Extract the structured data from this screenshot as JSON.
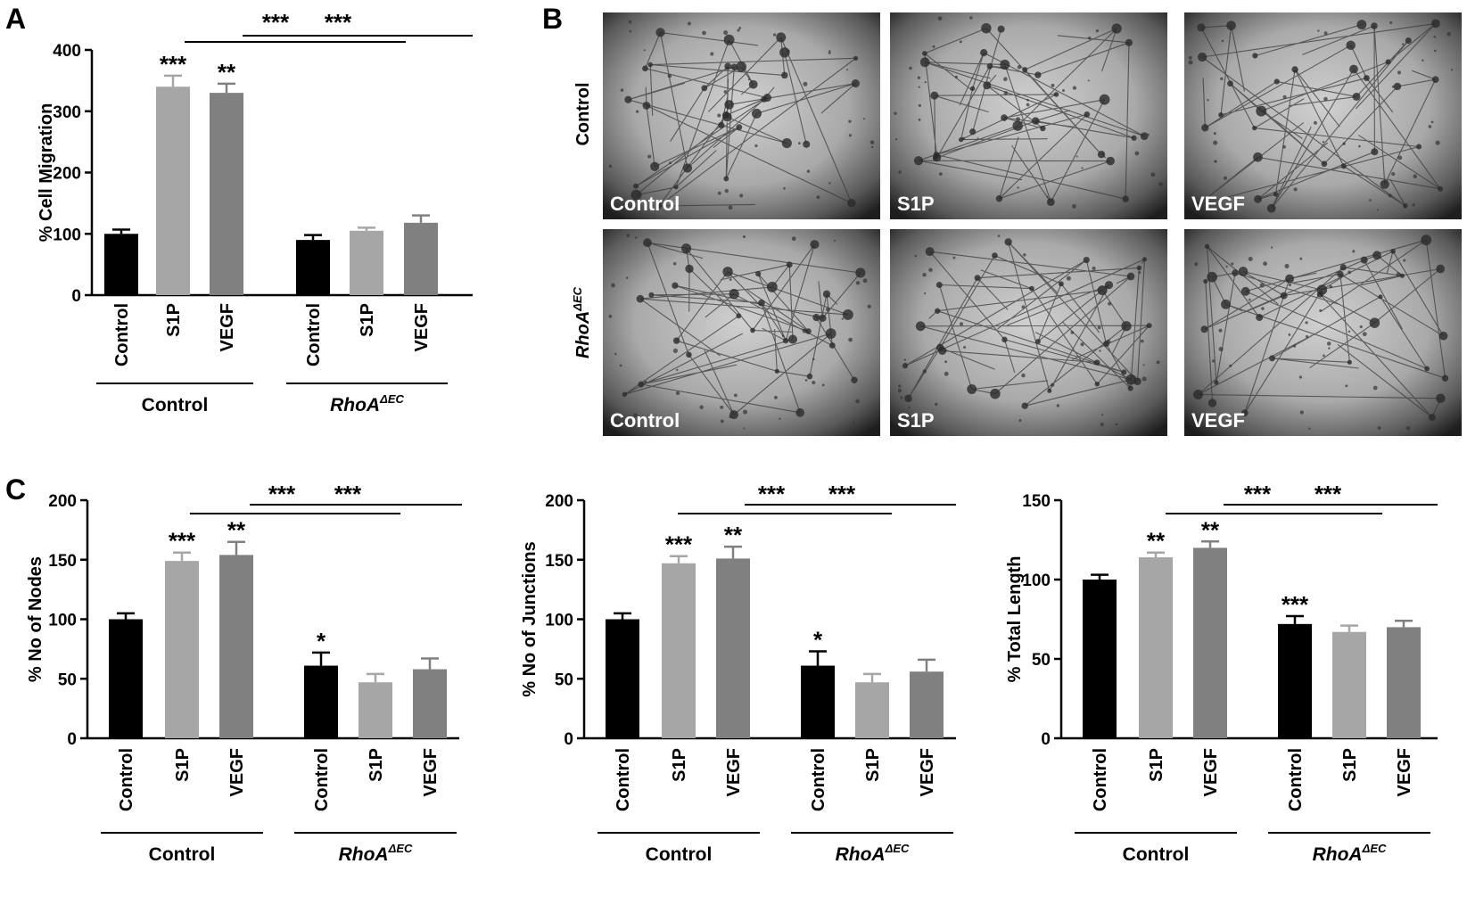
{
  "panels": {
    "A": "A",
    "B": "B",
    "C": "C"
  },
  "colors": {
    "control": "#000000",
    "s1p": "#a6a6a6",
    "vegf": "#808080"
  },
  "chart_data": [
    {
      "id": "A",
      "type": "bar",
      "ylabel": "% Cell Migration",
      "ylim": [
        0,
        400
      ],
      "yticks": [
        0,
        100,
        200,
        300,
        400
      ],
      "categories": [
        "Control",
        "S1P",
        "VEGF",
        "Control",
        "S1P",
        "VEGF"
      ],
      "groups": [
        {
          "label": "Control",
          "italic": false
        },
        {
          "label": "RhoA",
          "sup": "ΔEC",
          "italic": true
        }
      ],
      "values": [
        100,
        340,
        330,
        90,
        105,
        118
      ],
      "errors": [
        7,
        18,
        15,
        8,
        5,
        12
      ],
      "stars": [
        "",
        "***",
        "**",
        "",
        "",
        ""
      ],
      "bracket_stars": [
        "***",
        "***"
      ]
    },
    {
      "id": "C1",
      "type": "bar",
      "ylabel": "% No of Nodes",
      "ylim": [
        0,
        200
      ],
      "yticks": [
        0,
        50,
        100,
        150,
        200
      ],
      "categories": [
        "Control",
        "S1P",
        "VEGF",
        "Control",
        "S1P",
        "VEGF"
      ],
      "groups": [
        {
          "label": "Control",
          "italic": false
        },
        {
          "label": "RhoA",
          "sup": "ΔEC",
          "italic": true
        }
      ],
      "values": [
        100,
        149,
        154,
        61,
        47,
        58
      ],
      "errors": [
        5,
        7,
        11,
        11,
        7,
        9
      ],
      "stars": [
        "",
        "***",
        "**",
        "*",
        "",
        ""
      ],
      "bracket_stars": [
        "***",
        "***"
      ]
    },
    {
      "id": "C2",
      "type": "bar",
      "ylabel": "% No of Junctions",
      "ylim": [
        0,
        200
      ],
      "yticks": [
        0,
        50,
        100,
        150,
        200
      ],
      "categories": [
        "Control",
        "S1P",
        "VEGF",
        "Control",
        "S1P",
        "VEGF"
      ],
      "groups": [
        {
          "label": "Control",
          "italic": false
        },
        {
          "label": "RhoA",
          "sup": "ΔEC",
          "italic": true
        }
      ],
      "values": [
        100,
        147,
        151,
        61,
        47,
        56
      ],
      "errors": [
        5,
        6,
        10,
        12,
        7,
        10
      ],
      "stars": [
        "",
        "***",
        "**",
        "*",
        "",
        ""
      ],
      "bracket_stars": [
        "***",
        "***"
      ]
    },
    {
      "id": "C3",
      "type": "bar",
      "ylabel": "% Total Length",
      "ylim": [
        0,
        150
      ],
      "yticks": [
        0,
        50,
        100,
        150
      ],
      "categories": [
        "Control",
        "S1P",
        "VEGF",
        "Control",
        "S1P",
        "VEGF"
      ],
      "groups": [
        {
          "label": "Control",
          "italic": false
        },
        {
          "label": "RhoA",
          "sup": "ΔEC",
          "italic": true
        }
      ],
      "values": [
        100,
        114,
        120,
        72,
        67,
        70
      ],
      "errors": [
        3,
        3,
        4,
        5,
        4,
        4
      ],
      "stars": [
        "",
        "**",
        "**",
        "***",
        "",
        ""
      ],
      "bracket_stars": [
        "***",
        "***"
      ]
    }
  ],
  "micrographs": {
    "rows": [
      {
        "label": "Control",
        "italic": false
      },
      {
        "label": "RhoA",
        "sup": "ΔEC",
        "italic": true
      }
    ],
    "tile_labels": [
      "Control",
      "S1P",
      "VEGF"
    ]
  }
}
